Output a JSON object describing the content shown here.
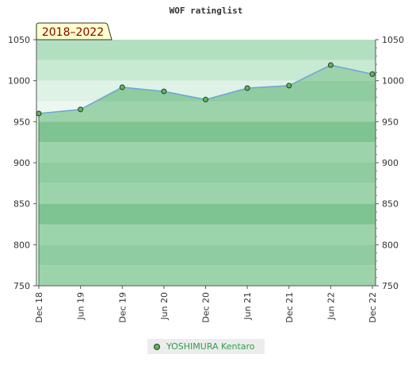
{
  "chart_data": {
    "type": "area",
    "title": "WOF ratinglist",
    "range_label": "2018–2022",
    "categories": [
      "Dec 18",
      "Jun 19",
      "Dec 19",
      "Jun 20",
      "Dec 20",
      "Jun 21",
      "Dec 21",
      "Jun 22",
      "Dec 22"
    ],
    "series": [
      {
        "name": "YOSHIMURA Kentaro",
        "values": [
          960,
          965,
          992,
          987,
          977,
          991,
          994,
          1019,
          1008
        ]
      }
    ],
    "ylim": [
      750,
      1050
    ],
    "yticks": [
      750,
      800,
      850,
      900,
      950,
      1000,
      1050
    ],
    "legend": "bottom",
    "colors": {
      "fill": "#8fcc9f",
      "line": "#6aa6d6",
      "marker": "#5cb85c",
      "bands": [
        "#9dd3aa",
        "#8fcc9f",
        "#7ec490"
      ],
      "bg_bands": [
        "#b3dfc1",
        "#c8e9d2",
        "#dff2e6",
        "#ebf7ef"
      ]
    }
  }
}
